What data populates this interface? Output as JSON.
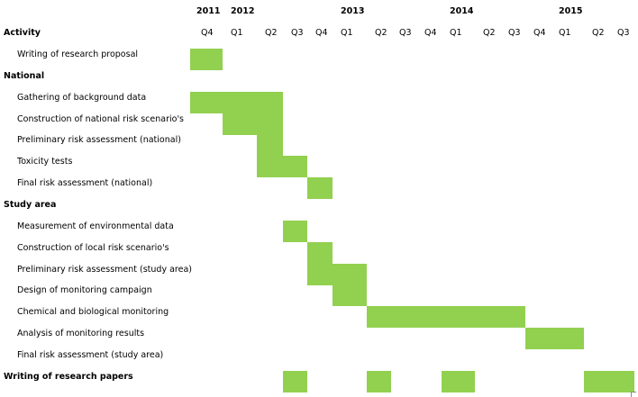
{
  "chart_data": {
    "type": "gantt",
    "activity_header": "Activity",
    "bar_color": "#92D050",
    "years": [
      {
        "label": "2011",
        "start_col": 0
      },
      {
        "label": "2012",
        "start_col": 1
      },
      {
        "label": "2013",
        "start_col": 5
      },
      {
        "label": "2014",
        "start_col": 9
      },
      {
        "label": "2015",
        "start_col": 13
      }
    ],
    "quarters": [
      "Q4",
      "Q1",
      "Q2",
      "Q3",
      "Q4",
      "Q1",
      "Q2",
      "Q3",
      "Q4",
      "Q1",
      "Q2",
      "Q3",
      "Q4",
      "Q1",
      "Q2",
      "Q3"
    ],
    "rows": [
      {
        "label": "Writing of research proposal",
        "kind": "task",
        "cols": [
          0
        ]
      },
      {
        "label": "National",
        "kind": "group",
        "cols": []
      },
      {
        "label": "Gathering of background data",
        "kind": "task",
        "cols": [
          0,
          1,
          2
        ]
      },
      {
        "label": "Construction of national risk scenario's",
        "kind": "task",
        "cols": [
          1,
          2
        ]
      },
      {
        "label": "Preliminary risk assessment (national)",
        "kind": "task",
        "cols": [
          2
        ]
      },
      {
        "label": "Toxicity tests",
        "kind": "task",
        "cols": [
          2,
          3
        ]
      },
      {
        "label": "Final risk assessment (national)",
        "kind": "task",
        "cols": [
          4
        ]
      },
      {
        "label": "Study area",
        "kind": "group",
        "cols": []
      },
      {
        "label": "Measurement of environmental data",
        "kind": "task",
        "cols": [
          3
        ]
      },
      {
        "label": "Construction of local risk scenario's",
        "kind": "task",
        "cols": [
          4
        ]
      },
      {
        "label": "Preliminary risk assessment (study area)",
        "kind": "task",
        "cols": [
          4,
          5
        ]
      },
      {
        "label": "Design of monitoring campaign",
        "kind": "task",
        "cols": [
          5
        ]
      },
      {
        "label": "Chemical and biological monitoring",
        "kind": "task",
        "cols": [
          6,
          7,
          8,
          9,
          10,
          11
        ]
      },
      {
        "label": "Analysis of monitoring results",
        "kind": "task",
        "cols": [
          12,
          13
        ]
      },
      {
        "label": "Final risk assessment (study area)",
        "kind": "task",
        "cols": []
      },
      {
        "label": "Writing of research papers",
        "kind": "group",
        "cols": [
          3,
          6,
          9,
          14,
          15
        ]
      }
    ]
  }
}
